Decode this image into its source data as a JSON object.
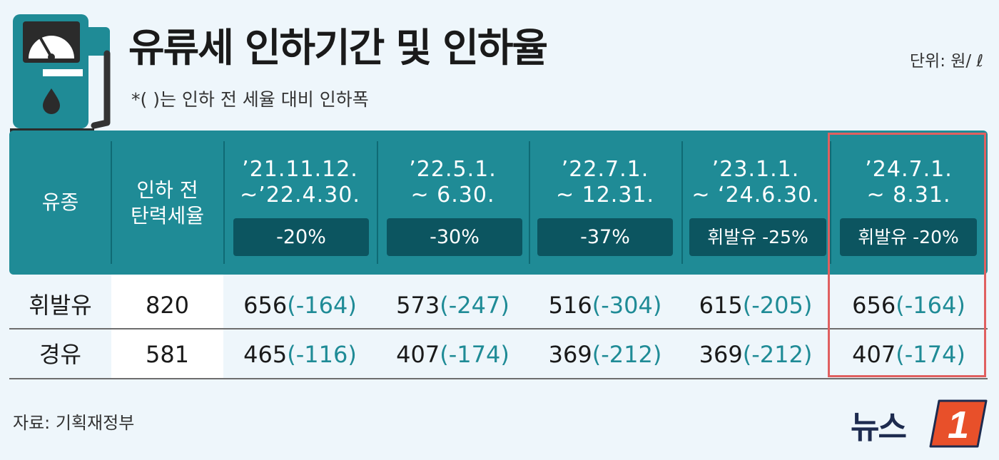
{
  "header": {
    "title": "유류세 인하기간 및 인하율",
    "subtitle": "*(   )는 인하 전 세율 대비 인하폭",
    "unit": "단위: 원/ ℓ"
  },
  "table": {
    "col_fuel": "유종",
    "col_base_line1": "인하 전",
    "col_base_line2": "탄력세율",
    "periods": [
      {
        "line1": "’21.11.12.",
        "line2": "~’22.4.30.",
        "rate": "-20%"
      },
      {
        "line1": "’22.5.1.",
        "line2": "~ 6.30.",
        "rate": "-30%"
      },
      {
        "line1": "’22.7.1.",
        "line2": "~ 12.31.",
        "rate": "-37%"
      },
      {
        "line1": "’23.1.1.",
        "line2": "~ ‘24.6.30.",
        "rate": "휘발유 -25%"
      },
      {
        "line1": "’24.7.1.",
        "line2": "~ 8.31.",
        "rate": "휘발유 -20%"
      }
    ],
    "rows": [
      {
        "fuel": "휘발유",
        "base": "820",
        "cells": [
          {
            "value": "656",
            "delta": "(-164)"
          },
          {
            "value": "573",
            "delta": "(-247)"
          },
          {
            "value": "516",
            "delta": "(-304)"
          },
          {
            "value": "615",
            "delta": "(-205)"
          },
          {
            "value": "656",
            "delta": "(-164)"
          }
        ]
      },
      {
        "fuel": "경유",
        "base": "581",
        "cells": [
          {
            "value": "465",
            "delta": "(-116)"
          },
          {
            "value": "407",
            "delta": "(-174)"
          },
          {
            "value": "369",
            "delta": "(-212)"
          },
          {
            "value": "369",
            "delta": "(-212)"
          },
          {
            "value": "407",
            "delta": "(-174)"
          }
        ]
      }
    ]
  },
  "footer": {
    "source": "자료: 기획재정부",
    "logo_text": "뉴스",
    "logo_mark": "1"
  },
  "colors": {
    "teal": "#1f8b96",
    "badge": "#0c5560",
    "highlight": "#e06060",
    "logo_orange": "#e8502a",
    "logo_navy": "#1d2b4f"
  },
  "icons": {
    "pump": "fuel-pump-icon"
  }
}
